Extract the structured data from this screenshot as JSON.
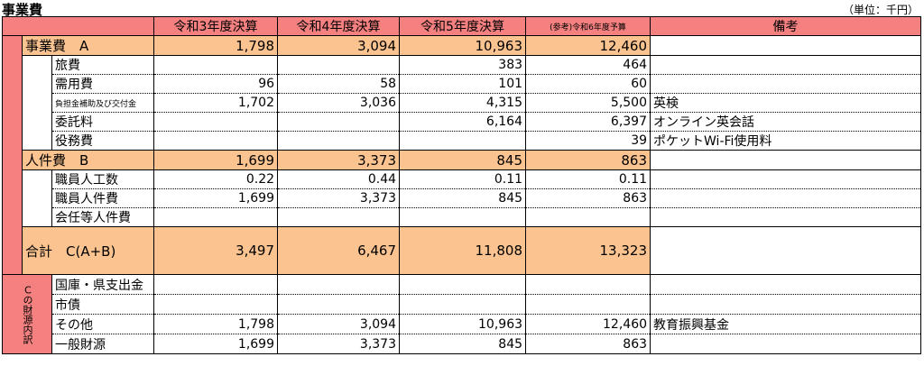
{
  "header": {
    "title": "事業費",
    "unit": "（単位：千円）"
  },
  "table": {
    "columns": [
      "令和3年度決算",
      "令和4年度決算",
      "令和5年度決算",
      "(参考)令和6年度予算",
      "備考"
    ],
    "sections": [
      {
        "label": "事業費　A",
        "values": [
          "1,798",
          "3,094",
          "10,963",
          "12,460"
        ],
        "items": [
          {
            "label": "旅費",
            "values": [
              null,
              null,
              "383",
              "464"
            ]
          },
          {
            "label": "需用費",
            "values": [
              "96",
              "58",
              "101",
              "60"
            ]
          },
          {
            "label": "負担金補助及び交付金",
            "values": [
              "1,702",
              "3,036",
              "4,315",
              "5,500"
            ],
            "note": "英検"
          },
          {
            "label": "委託料",
            "values": [
              null,
              null,
              "6,164",
              "6,397"
            ],
            "note": "オンライン英会話"
          },
          {
            "label": "役務費",
            "values": [
              null,
              null,
              null,
              "39"
            ],
            "note": "ポケットWi-Fi使用料"
          }
        ]
      },
      {
        "label": "人件費　B",
        "values": [
          "1,699",
          "3,373",
          "845",
          "863"
        ],
        "items": [
          {
            "label": "職員人工数",
            "values": [
              "0.22",
              "0.44",
              "0.11",
              "0.11"
            ]
          },
          {
            "label": "職員人件費",
            "values": [
              "1,699",
              "3,373",
              "845",
              "863"
            ]
          },
          {
            "label": "会任等人件費",
            "values": [
              null,
              null,
              null,
              null
            ]
          }
        ]
      }
    ],
    "total": {
      "label": "合計　C(A+B)",
      "values": [
        "3,497",
        "6,467",
        "11,808",
        "13,323"
      ]
    },
    "funding": {
      "label": "Ｃの財源内訳",
      "items": [
        {
          "label": "国庫・県支出金",
          "values": [
            null,
            null,
            null,
            null
          ]
        },
        {
          "label": "市債",
          "values": [
            null,
            null,
            null,
            null
          ]
        },
        {
          "label": "その他",
          "values": [
            "1,798",
            "3,094",
            "10,963",
            "12,460"
          ],
          "note": "教育振興基金"
        },
        {
          "label": "一般財源",
          "values": [
            "1,699",
            "3,373",
            "845",
            "863"
          ]
        }
      ]
    }
  }
}
